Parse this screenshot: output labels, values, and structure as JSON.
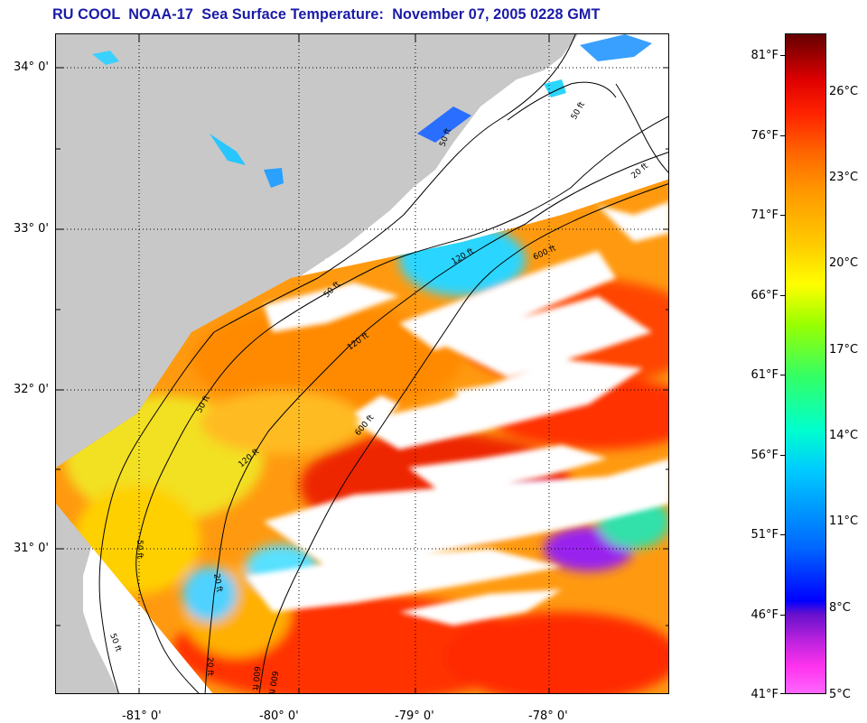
{
  "title": "RU COOL  NOAA-17  Sea Surface Temperature:  November 07, 2005 0228 GMT",
  "map": {
    "latitude_labels": [
      "34° 0'",
      "33° 0'",
      "32° 0'",
      "31° 0'"
    ],
    "longitude_labels": [
      "-81° 0'",
      "-80° 0'",
      "-79° 0'",
      "-78° 0'"
    ],
    "land_color": "#c8c8c8",
    "cloud_color": "#ffffff",
    "contour_labels": [
      "50 ft",
      "50 ft",
      "20 ft",
      "120 ft",
      "600 ft",
      "50 ft",
      "120 ft",
      "600 ft",
      "50 ft",
      "120 ft",
      "600 ft",
      "50 ft",
      "20 ft",
      "50 ft",
      "20 ft",
      "600 ft"
    ]
  },
  "colorbar": {
    "fahrenheit_labels": [
      "81°F",
      "76°F",
      "71°F",
      "66°F",
      "61°F",
      "56°F",
      "51°F",
      "46°F",
      "41°F"
    ],
    "celsius_labels": [
      "26°C",
      "23°C",
      "20°C",
      "17°C",
      "14°C",
      "11°C",
      "8°C",
      "5°C"
    ],
    "range_f": [
      41,
      84
    ]
  }
}
